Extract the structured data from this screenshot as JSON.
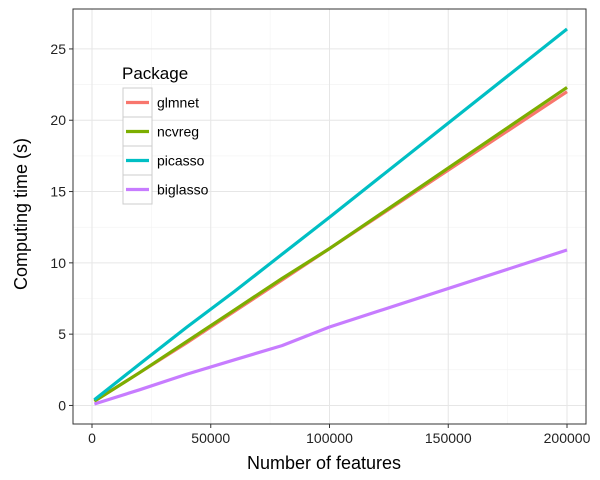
{
  "chart_data": {
    "type": "line",
    "title": "",
    "xlabel": "Number of features",
    "ylabel": "Computing time (s)",
    "xlim": [
      -8000,
      208000
    ],
    "ylim": [
      -1.3,
      27.8
    ],
    "x_ticks": [
      0,
      50000,
      100000,
      150000,
      200000
    ],
    "x_tick_labels": [
      "0",
      "50000",
      "100000",
      "150000",
      "200000"
    ],
    "y_ticks": [
      0,
      5,
      10,
      15,
      20,
      25
    ],
    "y_tick_labels": [
      "0",
      "5",
      "10",
      "15",
      "20",
      "25"
    ],
    "grid": true,
    "legend": {
      "title": "Package",
      "placement": "top-left"
    },
    "series": [
      {
        "name": "glmnet",
        "color": "#F8766D",
        "points": [
          [
            1000,
            0.3
          ],
          [
            20000,
            2.3
          ],
          [
            40000,
            4.4
          ],
          [
            60000,
            6.6
          ],
          [
            80000,
            8.8
          ],
          [
            100000,
            11.0
          ],
          [
            200000,
            22.0
          ]
        ]
      },
      {
        "name": "ncvreg",
        "color": "#7CAE00",
        "points": [
          [
            1000,
            0.3
          ],
          [
            20000,
            2.3
          ],
          [
            40000,
            4.5
          ],
          [
            60000,
            6.7
          ],
          [
            80000,
            8.9
          ],
          [
            100000,
            11.0
          ],
          [
            200000,
            22.3
          ]
        ]
      },
      {
        "name": "picasso",
        "color": "#00BFC4",
        "points": [
          [
            1000,
            0.4
          ],
          [
            20000,
            2.9
          ],
          [
            40000,
            5.5
          ],
          [
            60000,
            8.0
          ],
          [
            80000,
            10.6
          ],
          [
            100000,
            13.2
          ],
          [
            200000,
            26.4
          ]
        ]
      },
      {
        "name": "biglasso",
        "color": "#C77CFF",
        "points": [
          [
            1000,
            0.1
          ],
          [
            20000,
            1.1
          ],
          [
            40000,
            2.2
          ],
          [
            60000,
            3.2
          ],
          [
            80000,
            4.2
          ],
          [
            100000,
            5.5
          ],
          [
            200000,
            10.9
          ]
        ]
      }
    ]
  }
}
